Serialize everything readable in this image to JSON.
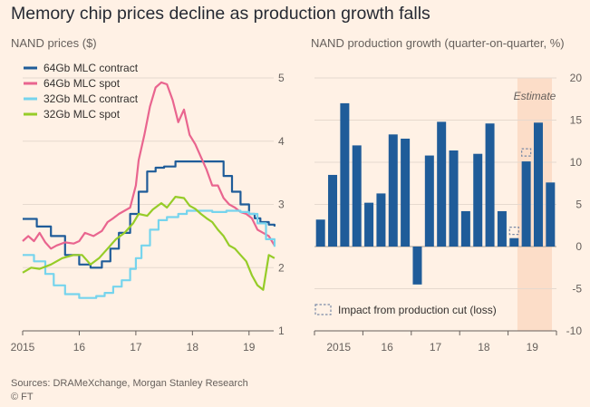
{
  "title": "Memory chip prices decline as production growth falls",
  "source": "Sources: DRAMeXchange, Morgan Stanley Research",
  "credit": "© FT",
  "chart_data": [
    {
      "type": "line",
      "title": "NAND prices ($)",
      "ylim": [
        1,
        5
      ],
      "yticks": [
        1,
        2,
        3,
        4,
        5
      ],
      "xlim": [
        2015,
        2019.5
      ],
      "xticks": [
        {
          "value": 2015,
          "label": "2015"
        },
        {
          "value": 2016,
          "label": "16"
        },
        {
          "value": 2017,
          "label": "17"
        },
        {
          "value": 2018,
          "label": "18"
        },
        {
          "value": 2019,
          "label": "19"
        }
      ],
      "series": [
        {
          "name": "64Gb MLC contract",
          "color": "#1f5c99",
          "step": true,
          "x": [
            2015.0,
            2015.25,
            2015.5,
            2015.75,
            2016.0,
            2016.2,
            2016.4,
            2016.55,
            2016.7,
            2016.9,
            2017.05,
            2017.2,
            2017.35,
            2017.5,
            2017.7,
            2017.9,
            2018.1,
            2018.3,
            2018.55,
            2018.7,
            2018.85,
            2019.0,
            2019.1,
            2019.2,
            2019.35,
            2019.45
          ],
          "y": [
            2.77,
            2.65,
            2.5,
            2.2,
            2.05,
            2.0,
            2.1,
            2.3,
            2.55,
            2.85,
            3.2,
            3.52,
            3.58,
            3.6,
            3.68,
            3.68,
            3.68,
            3.68,
            3.45,
            3.2,
            3.0,
            2.85,
            2.78,
            2.72,
            2.68,
            2.65
          ]
        },
        {
          "name": "64Gb MLC spot",
          "color": "#e9658f",
          "x": [
            2015.0,
            2015.1,
            2015.2,
            2015.3,
            2015.4,
            2015.5,
            2015.6,
            2015.75,
            2015.9,
            2016.0,
            2016.1,
            2016.25,
            2016.4,
            2016.5,
            2016.6,
            2016.7,
            2016.8,
            2016.9,
            2017.0,
            2017.05,
            2017.15,
            2017.25,
            2017.35,
            2017.45,
            2017.55,
            2017.65,
            2017.75,
            2017.85,
            2017.95,
            2018.05,
            2018.15,
            2018.25,
            2018.35,
            2018.45,
            2018.55,
            2018.65,
            2018.75,
            2018.85,
            2018.95,
            2019.05,
            2019.15,
            2019.25,
            2019.35,
            2019.45
          ],
          "y": [
            2.42,
            2.5,
            2.42,
            2.55,
            2.4,
            2.3,
            2.35,
            2.4,
            2.38,
            2.42,
            2.55,
            2.5,
            2.58,
            2.72,
            2.78,
            2.85,
            2.9,
            2.95,
            3.3,
            3.7,
            4.1,
            4.55,
            4.85,
            4.93,
            4.9,
            4.65,
            4.3,
            4.5,
            4.1,
            3.95,
            3.75,
            3.55,
            3.3,
            3.3,
            3.1,
            3.0,
            2.95,
            2.88,
            2.85,
            2.78,
            2.6,
            2.55,
            2.5,
            2.35
          ]
        },
        {
          "name": "32Gb MLC contract",
          "color": "#76d4ed",
          "step": true,
          "x": [
            2015.0,
            2015.2,
            2015.4,
            2015.55,
            2015.75,
            2016.0,
            2016.15,
            2016.3,
            2016.45,
            2016.6,
            2016.75,
            2016.9,
            2017.0,
            2017.1,
            2017.25,
            2017.4,
            2017.55,
            2017.75,
            2017.9,
            2018.1,
            2018.35,
            2018.6,
            2018.85,
            2019.0,
            2019.15,
            2019.3,
            2019.45
          ],
          "y": [
            2.2,
            2.1,
            1.9,
            1.72,
            1.58,
            1.52,
            1.52,
            1.55,
            1.6,
            1.7,
            1.8,
            1.98,
            2.15,
            2.35,
            2.6,
            2.75,
            2.8,
            2.85,
            2.9,
            2.9,
            2.88,
            2.9,
            2.88,
            2.85,
            2.7,
            2.45,
            2.33
          ]
        },
        {
          "name": "32Gb MLC spot",
          "color": "#96cc28",
          "x": [
            2015.0,
            2015.15,
            2015.3,
            2015.5,
            2015.7,
            2015.9,
            2016.05,
            2016.2,
            2016.35,
            2016.5,
            2016.65,
            2016.8,
            2016.95,
            2017.05,
            2017.2,
            2017.3,
            2017.45,
            2017.55,
            2017.7,
            2017.85,
            2017.95,
            2018.05,
            2018.15,
            2018.25,
            2018.35,
            2018.45,
            2018.55,
            2018.65,
            2018.75,
            2018.85,
            2018.95,
            2019.05,
            2019.15,
            2019.25,
            2019.35,
            2019.45
          ],
          "y": [
            1.92,
            2.0,
            1.98,
            2.05,
            2.15,
            2.2,
            2.2,
            2.05,
            2.15,
            2.3,
            2.45,
            2.55,
            2.7,
            2.85,
            2.82,
            2.92,
            3.02,
            2.95,
            3.12,
            3.1,
            2.98,
            2.93,
            2.85,
            2.78,
            2.72,
            2.6,
            2.5,
            2.35,
            2.3,
            2.2,
            2.1,
            1.88,
            1.72,
            1.65,
            2.2,
            2.15
          ]
        }
      ]
    },
    {
      "type": "bar",
      "title": "NAND production growth (quarter-on-quarter, %)",
      "ylim": [
        -10,
        20
      ],
      "yticks": [
        -10,
        -5,
        0,
        5,
        10,
        15,
        20
      ],
      "color": "#1f5c99",
      "xticks": [
        {
          "index": 1.5,
          "label": "2015"
        },
        {
          "index": 5.5,
          "label": "16"
        },
        {
          "index": 9.5,
          "label": "17"
        },
        {
          "index": 13.5,
          "label": "18"
        },
        {
          "index": 17.5,
          "label": "19"
        }
      ],
      "values": [
        3.2,
        8.5,
        17.0,
        12.0,
        5.2,
        6.3,
        13.3,
        12.8,
        -4.5,
        10.8,
        14.8,
        11.4,
        4.2,
        11.0,
        14.6,
        4.2,
        1.0,
        10.1,
        14.7,
        7.6
      ],
      "production_cut": [
        null,
        null,
        null,
        null,
        null,
        null,
        null,
        null,
        null,
        null,
        null,
        null,
        null,
        null,
        null,
        null,
        2.3,
        11.6,
        null,
        null
      ],
      "estimate_from_index": 17,
      "estimate_label": "Estimate",
      "legend": "Impact from production cut (loss)"
    }
  ]
}
